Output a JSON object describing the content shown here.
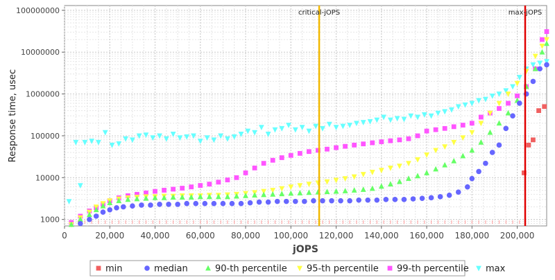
{
  "chart_data": {
    "type": "scatter",
    "xlabel": "jOPS",
    "ylabel": "Response time, usec",
    "y_scale": "log",
    "xlim": [
      0,
      213000
    ],
    "ylim": [
      700,
      130000000
    ],
    "grid": true,
    "legend_position": "bottom",
    "x_ticks": [
      {
        "value": 0,
        "label": "0"
      },
      {
        "value": 20000,
        "label": "20,000"
      },
      {
        "value": 40000,
        "label": "40,000"
      },
      {
        "value": 60000,
        "label": "60,000"
      },
      {
        "value": 80000,
        "label": "80,000"
      },
      {
        "value": 100000,
        "label": "100,000"
      },
      {
        "value": 120000,
        "label": "120,000"
      },
      {
        "value": 140000,
        "label": "140,000"
      },
      {
        "value": 160000,
        "label": "160,000"
      },
      {
        "value": 180000,
        "label": "180,000"
      },
      {
        "value": 200000,
        "label": "200,000"
      }
    ],
    "y_ticks": [
      {
        "value": 1000,
        "label": "1000"
      },
      {
        "value": 10000,
        "label": "10000"
      },
      {
        "value": 100000,
        "label": "100000"
      },
      {
        "value": 1000000,
        "label": "1000000"
      },
      {
        "value": 10000000,
        "label": "10000000"
      },
      {
        "value": 100000000,
        "label": "100000000"
      }
    ],
    "annotations": [
      {
        "label": "critical-jOPS",
        "x": 112500,
        "color": "#f2b800"
      },
      {
        "label": "max-jOPS",
        "x": 203500,
        "color": "#e00000"
      }
    ],
    "series": [
      {
        "name": "min",
        "marker": "square",
        "color": "#f06060",
        "x": [
          203000,
          205000,
          207000,
          209500,
          212000
        ],
        "y": [
          13000,
          60000,
          80000,
          400000,
          500000
        ]
      },
      {
        "name": "median",
        "marker": "circle",
        "color": "#6666ff",
        "x": [
          7000,
          11000,
          14000,
          17000,
          20000,
          23000,
          26000,
          30000,
          34000,
          38000,
          42000,
          46000,
          50000,
          54000,
          58000,
          62000,
          66000,
          70000,
          74000,
          78000,
          82000,
          86000,
          90000,
          94000,
          98000,
          102000,
          106000,
          110000,
          114000,
          118000,
          122000,
          126000,
          130000,
          134000,
          138000,
          142000,
          146000,
          150000,
          154000,
          158000,
          162000,
          166000,
          170000,
          174000,
          178000,
          180000,
          183000,
          186000,
          189000,
          192000,
          195000,
          198000,
          201000,
          204000,
          207000,
          210000,
          213000
        ],
        "y": [
          800,
          1000,
          1200,
          1500,
          1700,
          1900,
          2000,
          2100,
          2200,
          2200,
          2300,
          2300,
          2300,
          2400,
          2400,
          2400,
          2400,
          2400,
          2400,
          2400,
          2500,
          2600,
          2600,
          2700,
          2700,
          2700,
          2700,
          2800,
          2800,
          2800,
          2800,
          2800,
          2900,
          2900,
          2900,
          3000,
          3000,
          3000,
          3100,
          3200,
          3300,
          3500,
          3800,
          4500,
          6000,
          9500,
          14000,
          22000,
          40000,
          60000,
          150000,
          300000,
          600000,
          1000000,
          2000000,
          4000000,
          5000000
        ]
      },
      {
        "name": "90-th percentile",
        "marker": "triangle-up",
        "color": "#66ff66",
        "x": [
          3000,
          7000,
          11000,
          14000,
          17000,
          20000,
          24000,
          28000,
          32000,
          36000,
          40000,
          44000,
          48000,
          52000,
          56000,
          60000,
          64000,
          68000,
          72000,
          76000,
          80000,
          84000,
          88000,
          92000,
          96000,
          100000,
          104000,
          108000,
          112000,
          116000,
          120000,
          124000,
          128000,
          132000,
          136000,
          140000,
          144000,
          148000,
          152000,
          156000,
          160000,
          164000,
          168000,
          172000,
          176000,
          180000,
          184000,
          188000,
          192000,
          196000,
          200000,
          204000,
          208000,
          211000,
          213000
        ],
        "y": [
          700,
          1000,
          1300,
          1700,
          2100,
          2500,
          2800,
          3000,
          3100,
          3200,
          3300,
          3300,
          3400,
          3400,
          3400,
          3500,
          3500,
          3500,
          3500,
          3600,
          3700,
          3800,
          3900,
          4000,
          4100,
          4200,
          4300,
          4400,
          4500,
          4600,
          4700,
          4800,
          5000,
          5200,
          5500,
          6200,
          7000,
          8000,
          9500,
          11000,
          13000,
          16000,
          20000,
          25000,
          33000,
          45000,
          70000,
          120000,
          200000,
          350000,
          700000,
          1500000,
          4000000,
          10000000,
          16000000
        ]
      },
      {
        "name": "95-th percentile",
        "marker": "triangle-down",
        "color": "#ffff44",
        "x": [
          3000,
          7000,
          11000,
          14000,
          17000,
          20000,
          24000,
          28000,
          32000,
          36000,
          40000,
          44000,
          48000,
          52000,
          56000,
          60000,
          64000,
          68000,
          72000,
          76000,
          80000,
          84000,
          88000,
          92000,
          96000,
          100000,
          104000,
          108000,
          112000,
          116000,
          120000,
          124000,
          128000,
          132000,
          136000,
          140000,
          144000,
          148000,
          152000,
          156000,
          160000,
          164000,
          168000,
          172000,
          176000,
          180000,
          184000,
          188000,
          192000,
          196000,
          200000,
          204000,
          208000,
          211000,
          213000
        ],
        "y": [
          700,
          1100,
          1500,
          2000,
          2400,
          2800,
          3100,
          3300,
          3400,
          3500,
          3500,
          3600,
          3600,
          3700,
          3700,
          3700,
          3800,
          3800,
          3900,
          4000,
          4200,
          4400,
          4700,
          5000,
          5500,
          6000,
          6500,
          7000,
          7500,
          8000,
          8700,
          9500,
          10500,
          12000,
          13500,
          15000,
          17000,
          19000,
          22000,
          27000,
          35000,
          45000,
          55000,
          70000,
          90000,
          120000,
          200000,
          350000,
          600000,
          1000000,
          1800000,
          3500000,
          8000000,
          14000000,
          20000000
        ]
      },
      {
        "name": "99-th percentile",
        "marker": "square",
        "color": "#ff55ff",
        "x": [
          3000,
          7000,
          11000,
          14000,
          17000,
          20000,
          24000,
          28000,
          32000,
          36000,
          40000,
          44000,
          48000,
          52000,
          56000,
          60000,
          64000,
          68000,
          72000,
          76000,
          80000,
          84000,
          88000,
          92000,
          96000,
          100000,
          104000,
          108000,
          112000,
          116000,
          120000,
          124000,
          128000,
          132000,
          136000,
          140000,
          144000,
          148000,
          152000,
          156000,
          160000,
          164000,
          168000,
          172000,
          176000,
          180000,
          184000,
          188000,
          192000,
          196000,
          200000,
          204000,
          208000,
          211000,
          213000
        ],
        "y": [
          850,
          1200,
          1600,
          1900,
          2300,
          2800,
          3300,
          3700,
          4000,
          4300,
          4700,
          5000,
          5300,
          5600,
          6000,
          6500,
          7000,
          7800,
          8800,
          10000,
          13000,
          17000,
          22000,
          26000,
          30000,
          34000,
          38000,
          42000,
          45000,
          48000,
          52000,
          56000,
          60000,
          64000,
          68000,
          72000,
          76000,
          80000,
          85000,
          100000,
          130000,
          140000,
          150000,
          165000,
          180000,
          200000,
          280000,
          350000,
          450000,
          600000,
          900000,
          1500000,
          4000000,
          20000000,
          31000000
        ]
      },
      {
        "name": "max",
        "marker": "triangle-down",
        "color": "#66ffff",
        "x": [
          2000,
          5000,
          7000,
          9000,
          12000,
          15000,
          18000,
          21000,
          24000,
          27000,
          30000,
          33000,
          36000,
          39000,
          42000,
          45000,
          48000,
          51000,
          54000,
          57000,
          60000,
          63000,
          66000,
          69000,
          72000,
          75000,
          78000,
          81000,
          84000,
          87000,
          90000,
          93000,
          96000,
          99000,
          102000,
          105000,
          108000,
          111000,
          114000,
          117000,
          120000,
          123000,
          126000,
          129000,
          132000,
          135000,
          138000,
          141000,
          144000,
          147000,
          150000,
          153000,
          156000,
          159000,
          162000,
          165000,
          168000,
          171000,
          174000,
          177000,
          180000,
          183000,
          186000,
          189000,
          192000,
          195000,
          198000,
          201000,
          204000,
          207000,
          210000,
          213000
        ],
        "y": [
          2700,
          70000,
          6500,
          70000,
          75000,
          70000,
          120000,
          60000,
          65000,
          85000,
          80000,
          100000,
          105000,
          90000,
          100000,
          85000,
          110000,
          90000,
          95000,
          100000,
          75000,
          90000,
          80000,
          100000,
          85000,
          95000,
          110000,
          130000,
          120000,
          160000,
          110000,
          140000,
          150000,
          180000,
          140000,
          160000,
          130000,
          170000,
          150000,
          190000,
          160000,
          170000,
          180000,
          200000,
          210000,
          220000,
          240000,
          280000,
          240000,
          260000,
          250000,
          300000,
          280000,
          320000,
          300000,
          350000,
          380000,
          420000,
          500000,
          550000,
          600000,
          700000,
          750000,
          900000,
          1000000,
          1200000,
          1500000,
          2500000,
          4000000,
          5000000,
          5500000,
          6000000
        ]
      }
    ]
  }
}
